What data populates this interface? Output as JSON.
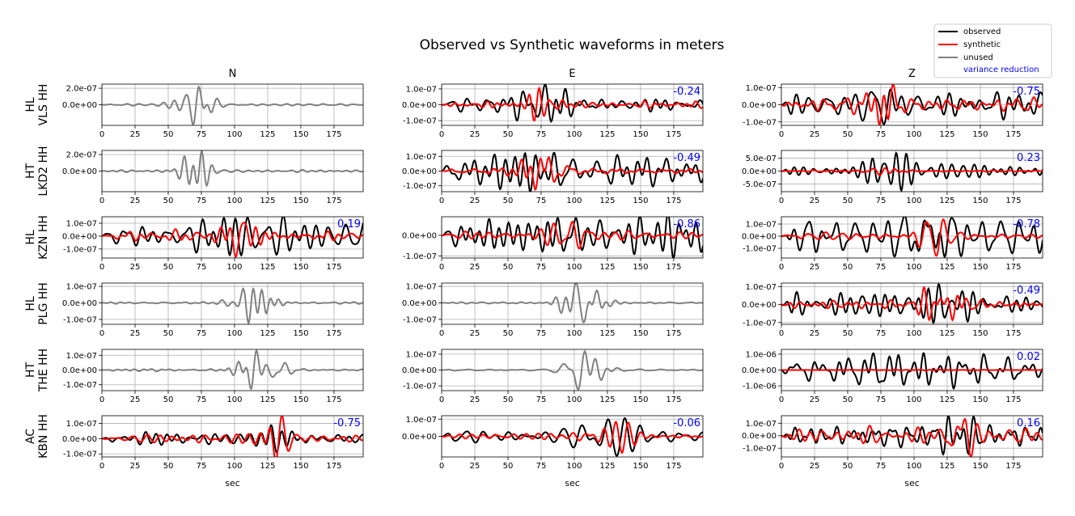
{
  "title": "Observed vs Synthetic waveforms in meters",
  "xlabel": "sec",
  "legend": {
    "placement": "top-right",
    "entries": [
      {
        "label": "observed",
        "color": "#000000"
      },
      {
        "label": "synthetic",
        "color": "#ff0000"
      },
      {
        "label": "unused",
        "color": "#808080"
      },
      {
        "label": "variance reduction",
        "color": "#0000ff",
        "text_only": true
      }
    ]
  },
  "columns": [
    "N",
    "E",
    "Z"
  ],
  "stations": [
    {
      "net": "HL",
      "name": "VLS HH"
    },
    {
      "net": "HT",
      "name": "LKD2 HH"
    },
    {
      "net": "HL",
      "name": "KZN HH"
    },
    {
      "net": "HL",
      "name": "PLG HH"
    },
    {
      "net": "HT",
      "name": "THE HH"
    },
    {
      "net": "AC",
      "name": "KBN HH"
    }
  ],
  "colors": {
    "observed": "#000000",
    "synthetic": "#ff0000",
    "unused": "#808080",
    "vr": "#0000ff",
    "grid": "#b0b0b0"
  },
  "chart_data": {
    "type": "line",
    "x_range": [
      0,
      197
    ],
    "x_ticks": [
      0,
      25,
      50,
      75,
      100,
      125,
      150,
      175
    ],
    "x_ticks_all_panels": true,
    "x_label_bottom_row_only": true,
    "grid": true,
    "panels": [
      {
        "row": 0,
        "col": "N",
        "status": "unused",
        "vr": "",
        "ylim": [
          -2.5e-07,
          2.5e-07
        ],
        "yticks": [
          0,
          2e-07
        ],
        "ytick_labels": [
          "0.0e+00",
          "2.0e-07"
        ],
        "seed": 11,
        "ampObs": 0.95,
        "ampSyn": 0,
        "center": 70,
        "spread": 13,
        "decay": 0.03
      },
      {
        "row": 0,
        "col": "E",
        "status": "used",
        "vr": "-0.24",
        "ylim": [
          -1.3e-07,
          1.3e-07
        ],
        "yticks": [
          -1e-07,
          0,
          1e-07
        ],
        "ytick_labels": [
          "-1.0e-07",
          "0.0e+00",
          "1.0e-07"
        ],
        "seed": 12,
        "ampObs": 1.0,
        "ampSyn": 0.8,
        "center": 77,
        "spread": 22,
        "decay": 0.3
      },
      {
        "row": 0,
        "col": "Z",
        "status": "used",
        "vr": "-0.75",
        "ylim": [
          -1.2e-07,
          1.2e-07
        ],
        "yticks": [
          -1e-07,
          0,
          1e-07
        ],
        "ytick_labels": [
          "-1.0e-07",
          "0.0e+00",
          "1.0e-07"
        ],
        "seed": 13,
        "ampObs": 0.95,
        "ampSyn": 1.0,
        "center": 75,
        "spread": 15,
        "decay": 0.55
      },
      {
        "row": 1,
        "col": "N",
        "status": "unused",
        "vr": "",
        "ylim": [
          -2.5e-07,
          2.5e-07
        ],
        "yticks": [
          0,
          2e-07
        ],
        "ytick_labels": [
          "0.0e+00",
          "2.0e-07"
        ],
        "seed": 21,
        "ampObs": 0.95,
        "ampSyn": 0,
        "center": 73,
        "spread": 12,
        "decay": 0.03
      },
      {
        "row": 1,
        "col": "E",
        "status": "used",
        "vr": "-0.49",
        "ylim": [
          -1.4e-07,
          1.4e-07
        ],
        "yticks": [
          -1e-07,
          0,
          1e-07
        ],
        "ytick_labels": [
          "-1.0e-07",
          "0.0e+00",
          "1.0e-07"
        ],
        "seed": 22,
        "ampObs": 1.0,
        "ampSyn": 0.9,
        "center": 77,
        "spread": 22,
        "decay": 0.35
      },
      {
        "row": 1,
        "col": "Z",
        "status": "used",
        "vr": "0.23",
        "ylim": [
          -8e-07,
          8e-07
        ],
        "yticks": [
          -5e-07,
          0,
          5e-07
        ],
        "ytick_labels": [
          "-5.0e-07",
          "0.0e+00",
          "5.0e-07"
        ],
        "seed": 23,
        "ampObs": 0.95,
        "ampSyn": 0.2,
        "center": 80,
        "spread": 18,
        "decay": 0.35
      },
      {
        "row": 2,
        "col": "N",
        "status": "used",
        "vr": "0.19",
        "ylim": [
          -1.7e-07,
          1.5e-07
        ],
        "yticks": [
          -1e-07,
          0,
          1e-07
        ],
        "ytick_labels": [
          "-1.0e-07",
          "0.0e+00",
          "1.0e-07"
        ],
        "seed": 31,
        "ampObs": 0.95,
        "ampSyn": 0.95,
        "center": 108,
        "spread": 16,
        "decay": 0.55
      },
      {
        "row": 2,
        "col": "E",
        "status": "used",
        "vr": "-0.86",
        "ylim": [
          -1.1e-07,
          9e-08
        ],
        "yticks": [
          -1e-07,
          0
        ],
        "ytick_labels": [
          "-1.0e-07",
          "0.0e+00"
        ],
        "seed": 32,
        "ampObs": 1.0,
        "ampSyn": 0.6,
        "center": 98,
        "spread": 20,
        "decay": 0.45
      },
      {
        "row": 2,
        "col": "Z",
        "status": "used",
        "vr": "-0.78",
        "ylim": [
          -1.8e-07,
          1.6e-07
        ],
        "yticks": [
          -1e-07,
          0,
          1e-07
        ],
        "ytick_labels": [
          "-1.0e-07",
          "0.0e+00",
          "1.0e-07"
        ],
        "seed": 33,
        "ampObs": 0.95,
        "ampSyn": 0.9,
        "center": 112,
        "spread": 16,
        "decay": 0.45
      },
      {
        "row": 3,
        "col": "N",
        "status": "unused",
        "vr": "",
        "ylim": [
          -1.3e-07,
          1.2e-07
        ],
        "yticks": [
          -1e-07,
          0,
          1e-07
        ],
        "ytick_labels": [
          "-1.0e-07",
          "0.0e+00",
          "1.0e-07"
        ],
        "seed": 41,
        "ampObs": 0.95,
        "ampSyn": 0,
        "center": 115,
        "spread": 15,
        "decay": 0.03
      },
      {
        "row": 3,
        "col": "E",
        "status": "unused",
        "vr": "",
        "ylim": [
          -1.3e-07,
          1.2e-07
        ],
        "yticks": [
          -1e-07,
          0,
          1e-07
        ],
        "ytick_labels": [
          "-1.0e-07",
          "0.0e+00",
          "1.0e-07"
        ],
        "seed": 42,
        "ampObs": 0.95,
        "ampSyn": 0,
        "center": 105,
        "spread": 15,
        "decay": 0.03
      },
      {
        "row": 3,
        "col": "Z",
        "status": "used",
        "vr": "-0.49",
        "ylim": [
          -1.1e-07,
          1.2e-07
        ],
        "yticks": [
          -1e-07,
          0,
          1e-07
        ],
        "ytick_labels": [
          "-1.0e-07",
          "0.0e+00",
          "1.0e-07"
        ],
        "seed": 43,
        "ampObs": 0.95,
        "ampSyn": 0.8,
        "center": 120,
        "spread": 22,
        "decay": 0.55
      },
      {
        "row": 4,
        "col": "N",
        "status": "unused",
        "vr": "",
        "ylim": [
          -1.4e-07,
          1.4e-07
        ],
        "yticks": [
          -1e-07,
          0,
          1e-07
        ],
        "ytick_labels": [
          "-1.0e-07",
          "0.0e+00",
          "1.0e-07"
        ],
        "seed": 51,
        "ampObs": 0.95,
        "ampSyn": 0,
        "center": 120,
        "spread": 15,
        "decay": 0.03
      },
      {
        "row": 4,
        "col": "E",
        "status": "unused",
        "vr": "",
        "ylim": [
          -1.3e-07,
          1.3e-07
        ],
        "yticks": [
          -1e-07,
          0,
          1e-07
        ],
        "ytick_labels": [
          "-1.0e-07",
          "0.0e+00",
          "1.0e-07"
        ],
        "seed": 52,
        "ampObs": 0.95,
        "ampSyn": 0,
        "center": 108,
        "spread": 14,
        "decay": 0.03
      },
      {
        "row": 4,
        "col": "Z",
        "status": "used",
        "vr": "0.02",
        "ylim": [
          -1.3e-06,
          1.3e-06
        ],
        "yticks": [
          -1e-06,
          0,
          1e-06
        ],
        "ytick_labels": [
          "-1.0e-06",
          "0.0e+00",
          "1.0e-06"
        ],
        "seed": 53,
        "ampObs": 0.9,
        "ampSyn": 0.02,
        "center": 100,
        "spread": 70,
        "decay": 0.2
      },
      {
        "row": 5,
        "col": "N",
        "status": "used",
        "vr": "-0.75",
        "ylim": [
          -1.2e-07,
          1.5e-07
        ],
        "yticks": [
          -1e-07,
          0,
          1e-07
        ],
        "ytick_labels": [
          "-1.0e-07",
          "0.0e+00",
          "1.0e-07"
        ],
        "seed": 61,
        "ampObs": 0.6,
        "ampSyn": 1.0,
        "center": 132,
        "spread": 14,
        "decay": 0.4
      },
      {
        "row": 5,
        "col": "E",
        "status": "used",
        "vr": "-0.06",
        "ylim": [
          -1.2e-07,
          1.2e-07
        ],
        "yticks": [
          0,
          1e-07
        ],
        "ytick_labels": [
          "0.0e+00",
          "1.0e-07"
        ],
        "seed": 62,
        "ampObs": 0.95,
        "ampSyn": 0.8,
        "center": 125,
        "spread": 25,
        "decay": 0.2
      },
      {
        "row": 5,
        "col": "Z",
        "status": "used",
        "vr": "0.16",
        "ylim": [
          -1.7e-07,
          1.6e-07
        ],
        "yticks": [
          -1e-07,
          0,
          1e-07
        ],
        "ytick_labels": [
          "-1.0e-07",
          "0.0e+00",
          "1.0e-07"
        ],
        "seed": 63,
        "ampObs": 0.95,
        "ampSyn": 1.0,
        "center": 133,
        "spread": 12,
        "decay": 0.35
      }
    ]
  }
}
